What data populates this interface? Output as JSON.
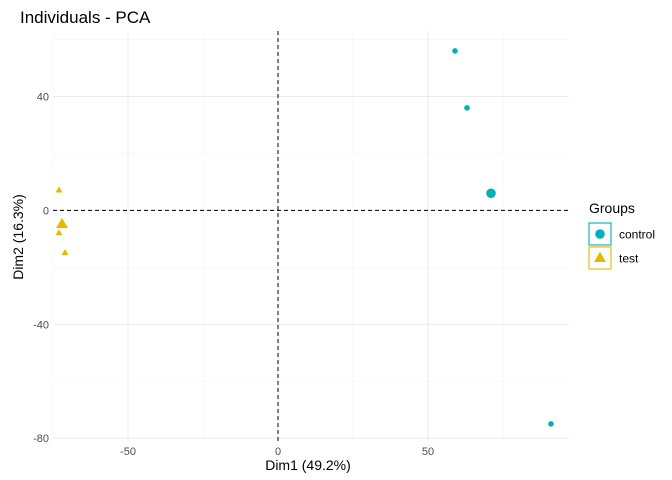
{
  "chart_data": {
    "type": "scatter",
    "title": "Individuals - PCA",
    "xlabel": "Dim1 (49.2%)",
    "ylabel": "Dim2 (16.3%)",
    "xlim": [
      -75,
      97
    ],
    "ylim": [
      -81,
      63
    ],
    "xticks": [
      -50,
      0,
      50
    ],
    "yticks": [
      40,
      0,
      -40,
      -80
    ],
    "grid": true,
    "reference_lines": {
      "x": 0,
      "y": 0
    },
    "legend": {
      "title": "Groups",
      "placement": "right"
    },
    "series": [
      {
        "name": "control",
        "marker": "circle",
        "color": "#00AFBB",
        "points": [
          {
            "x": 59,
            "y": 56
          },
          {
            "x": 63,
            "y": 36
          },
          {
            "x": 91,
            "y": -75
          }
        ],
        "centroid": {
          "x": 71,
          "y": 6
        }
      },
      {
        "name": "test",
        "marker": "triangle",
        "color": "#E7B800",
        "points": [
          {
            "x": -73,
            "y": 7
          },
          {
            "x": -73,
            "y": -8
          },
          {
            "x": -71,
            "y": -15
          }
        ],
        "centroid": {
          "x": -72,
          "y": -5
        }
      }
    ]
  }
}
